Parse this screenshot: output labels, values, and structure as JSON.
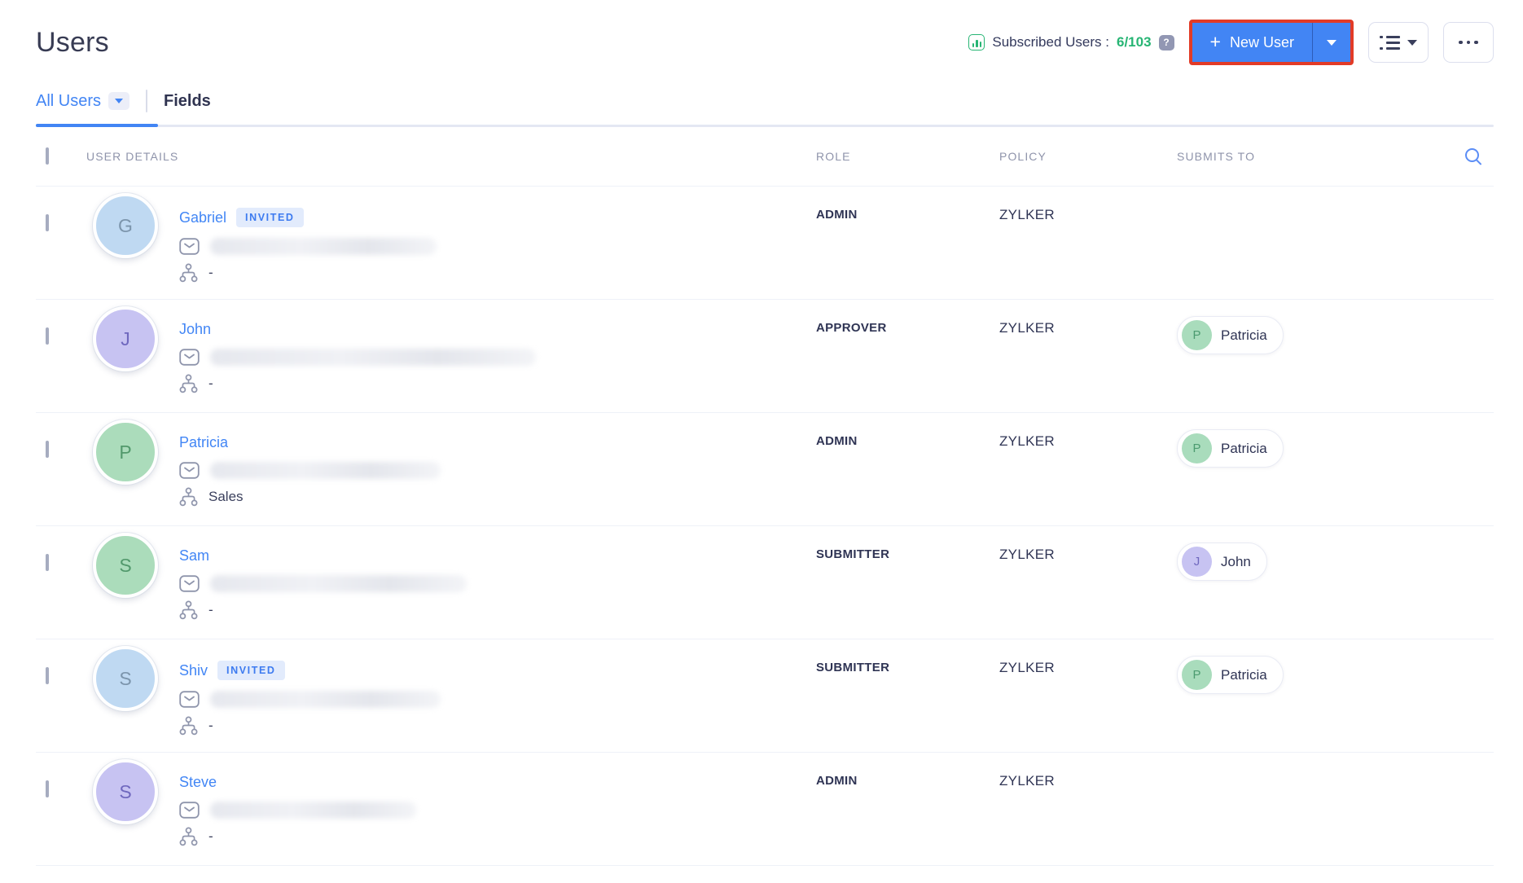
{
  "page": {
    "title": "Users"
  },
  "header": {
    "subscribed_label": "Subscribed Users :",
    "subscribed_count": "6/103",
    "help_glyph": "?",
    "new_user_label": "New User",
    "plus_glyph": "+"
  },
  "tabs": {
    "all_users_label": "All Users",
    "fields_label": "Fields"
  },
  "badges": {
    "invited": "INVITED"
  },
  "table_headers": {
    "user_details": "USER DETAILS",
    "role": "ROLE",
    "policy": "POLICY",
    "submits_to": "SUBMITS TO"
  },
  "colors": {
    "accent_blue": "#4285F4",
    "success_green": "#27B574",
    "highlight_red": "#E23B27",
    "link_blue": "#4286F5"
  },
  "users": [
    {
      "name": "Gabriel",
      "initial": "G",
      "avatar_bg": "#BFD9F2",
      "avatar_fg": "#7C95AC",
      "invited": true,
      "department": "-",
      "role": "ADMIN",
      "policy": "ZYLKER",
      "submits_to": null,
      "email_blur_width": 278
    },
    {
      "name": "John",
      "initial": "J",
      "avatar_bg": "#C7C3F2",
      "avatar_fg": "#6F68BE",
      "invited": false,
      "department": "-",
      "role": "APPROVER",
      "policy": "ZYLKER",
      "submits_to": {
        "name": "Patricia",
        "initial": "P",
        "avatar_bg": "#A9DCBC",
        "avatar_fg": "#4C9B70"
      },
      "email_blur_width": 400
    },
    {
      "name": "Patricia",
      "initial": "P",
      "avatar_bg": "#ABDCBB",
      "avatar_fg": "#52996C",
      "invited": false,
      "department": "Sales",
      "role": "ADMIN",
      "policy": "ZYLKER",
      "submits_to": {
        "name": "Patricia",
        "initial": "P",
        "avatar_bg": "#A9DCBC",
        "avatar_fg": "#4C9B70"
      },
      "email_blur_width": 283
    },
    {
      "name": "Sam",
      "initial": "S",
      "avatar_bg": "#ABDCBB",
      "avatar_fg": "#52996C",
      "invited": false,
      "department": "-",
      "role": "SUBMITTER",
      "policy": "ZYLKER",
      "submits_to": {
        "name": "John",
        "initial": "J",
        "avatar_bg": "#C7C3F2",
        "avatar_fg": "#6F68BE"
      },
      "email_blur_width": 315
    },
    {
      "name": "Shiv",
      "initial": "S",
      "avatar_bg": "#BFD9F2",
      "avatar_fg": "#7C95AC",
      "invited": true,
      "department": "-",
      "role": "SUBMITTER",
      "policy": "ZYLKER",
      "submits_to": {
        "name": "Patricia",
        "initial": "P",
        "avatar_bg": "#A9DCBC",
        "avatar_fg": "#4C9B70"
      },
      "email_blur_width": 283
    },
    {
      "name": "Steve",
      "initial": "S",
      "avatar_bg": "#C7C3F2",
      "avatar_fg": "#6F68BE",
      "invited": false,
      "department": "-",
      "role": "ADMIN",
      "policy": "ZYLKER",
      "submits_to": null,
      "email_blur_width": 253
    }
  ]
}
